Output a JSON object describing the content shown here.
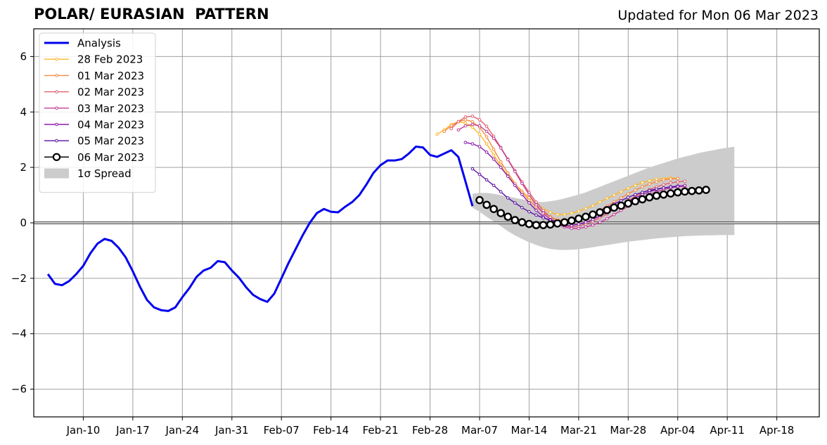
{
  "chart_data": {
    "type": "line",
    "title": "POLAR/ EURASIAN  PATTERN",
    "subtitle": "Updated for Mon 06 Mar 2023",
    "xlabel": "",
    "ylabel": "",
    "x_range": [
      "2023-01-03",
      "2023-04-24"
    ],
    "ylim": [
      -7,
      7
    ],
    "y_ticks": [
      -6,
      -4,
      -2,
      0,
      2,
      4,
      6
    ],
    "x_ticks": [
      {
        "date": "2023-01-10",
        "label": "Jan-10"
      },
      {
        "date": "2023-01-17",
        "label": "Jan-17"
      },
      {
        "date": "2023-01-24",
        "label": "Jan-24"
      },
      {
        "date": "2023-01-31",
        "label": "Jan-31"
      },
      {
        "date": "2023-02-07",
        "label": "Feb-07"
      },
      {
        "date": "2023-02-14",
        "label": "Feb-14"
      },
      {
        "date": "2023-02-21",
        "label": "Feb-21"
      },
      {
        "date": "2023-02-28",
        "label": "Feb-28"
      },
      {
        "date": "2023-03-07",
        "label": "Mar-07"
      },
      {
        "date": "2023-03-14",
        "label": "Mar-14"
      },
      {
        "date": "2023-03-21",
        "label": "Mar-21"
      },
      {
        "date": "2023-03-28",
        "label": "Mar-28"
      },
      {
        "date": "2023-04-04",
        "label": "Apr-04"
      },
      {
        "date": "2023-04-11",
        "label": "Apr-11"
      },
      {
        "date": "2023-04-18",
        "label": "Apr-18"
      }
    ],
    "grid": true,
    "legend_position": "top-left",
    "analysis": {
      "name": "Analysis",
      "color": "#0000ee",
      "start_date": "2023-01-05",
      "values": [
        -1.85,
        -2.2,
        -2.25,
        -2.1,
        -1.85,
        -1.55,
        -1.1,
        -0.75,
        -0.58,
        -0.65,
        -0.9,
        -1.25,
        -1.75,
        -2.3,
        -2.78,
        -3.05,
        -3.15,
        -3.18,
        -3.05,
        -2.68,
        -2.35,
        -1.95,
        -1.72,
        -1.62,
        -1.38,
        -1.42,
        -1.72,
        -1.98,
        -2.32,
        -2.6,
        -2.75,
        -2.85,
        -2.55,
        -2.0,
        -1.45,
        -0.95,
        -0.45,
        0.0,
        0.35,
        0.5,
        0.4,
        0.38,
        0.58,
        0.75,
        1.0,
        1.38,
        1.8,
        2.08,
        2.25,
        2.25,
        2.3,
        2.5,
        2.75,
        2.72,
        2.45,
        2.38,
        2.5,
        2.62,
        2.38,
        1.5,
        0.6
      ]
    },
    "forecasts": [
      {
        "name": "28 Feb 2023",
        "color": "#fbb829",
        "start_date": "2023-03-01",
        "values": [
          3.2,
          3.35,
          3.55,
          3.65,
          3.6,
          3.45,
          3.2,
          2.85,
          2.45,
          2.05,
          1.7,
          1.4,
          1.15,
          0.9,
          0.7,
          0.5,
          0.38,
          0.3,
          0.3,
          0.35,
          0.42,
          0.52,
          0.62,
          0.75,
          0.88,
          1.0,
          1.12,
          1.25,
          1.35,
          1.45,
          1.52,
          1.57,
          1.6,
          1.62,
          1.6
        ]
      },
      {
        "name": "01 Mar 2023",
        "color": "#f58b42",
        "start_date": "2023-03-02",
        "values": [
          3.3,
          3.5,
          3.65,
          3.72,
          3.65,
          3.45,
          3.1,
          2.65,
          2.2,
          1.8,
          1.42,
          1.1,
          0.82,
          0.58,
          0.38,
          0.22,
          0.12,
          0.08,
          0.08,
          0.12,
          0.2,
          0.32,
          0.45,
          0.6,
          0.75,
          0.9,
          1.05,
          1.18,
          1.3,
          1.4,
          1.48,
          1.55,
          1.58,
          1.6
        ]
      },
      {
        "name": "02 Mar 2023",
        "color": "#e0606e",
        "start_date": "2023-03-03",
        "values": [
          3.4,
          3.65,
          3.82,
          3.85,
          3.72,
          3.48,
          3.12,
          2.72,
          2.3,
          1.88,
          1.48,
          1.1,
          0.75,
          0.45,
          0.2,
          0.02,
          -0.1,
          -0.15,
          -0.12,
          -0.05,
          0.05,
          0.18,
          0.32,
          0.48,
          0.64,
          0.8,
          0.95,
          1.08,
          1.2,
          1.3,
          1.38,
          1.44,
          1.48,
          1.5
        ]
      },
      {
        "name": "03 Mar 2023",
        "color": "#c03b97",
        "start_date": "2023-03-04",
        "values": [
          3.35,
          3.5,
          3.55,
          3.5,
          3.3,
          3.05,
          2.7,
          2.28,
          1.85,
          1.42,
          1.02,
          0.65,
          0.35,
          0.12,
          -0.05,
          -0.15,
          -0.2,
          -0.2,
          -0.15,
          -0.08,
          0.02,
          0.15,
          0.3,
          0.45,
          0.6,
          0.75,
          0.9,
          1.02,
          1.12,
          1.2,
          1.26,
          1.3,
          1.32
        ]
      },
      {
        "name": "04 Mar 2023",
        "color": "#8e1bab",
        "start_date": "2023-03-05",
        "values": [
          2.9,
          2.85,
          2.75,
          2.55,
          2.3,
          2.0,
          1.68,
          1.35,
          1.02,
          0.72,
          0.45,
          0.22,
          0.05,
          -0.05,
          -0.1,
          -0.1,
          -0.05,
          0.02,
          0.12,
          0.25,
          0.38,
          0.52,
          0.65,
          0.78,
          0.9,
          1.02,
          1.12,
          1.2,
          1.26,
          1.3,
          1.33,
          1.35
        ]
      },
      {
        "name": "05 Mar 2023",
        "color": "#5a0fa0",
        "start_date": "2023-03-06",
        "values": [
          1.95,
          1.75,
          1.55,
          1.35,
          1.12,
          0.9,
          0.72,
          0.55,
          0.4,
          0.28,
          0.18,
          0.1,
          0.05,
          0.04,
          0.06,
          0.12,
          0.2,
          0.3,
          0.42,
          0.55,
          0.68,
          0.8,
          0.92,
          1.02,
          1.1,
          1.17,
          1.22,
          1.26,
          1.29,
          1.31
        ]
      },
      {
        "name": "06 Mar 2023",
        "color": "#000000",
        "start_date": "2023-03-07",
        "values": [
          0.82,
          0.65,
          0.5,
          0.35,
          0.22,
          0.1,
          0.02,
          -0.04,
          -0.08,
          -0.08,
          -0.06,
          -0.02,
          0.02,
          0.08,
          0.15,
          0.22,
          0.3,
          0.38,
          0.46,
          0.55,
          0.62,
          0.7,
          0.78,
          0.85,
          0.92,
          0.98,
          1.02,
          1.06,
          1.1,
          1.13,
          1.15,
          1.17,
          1.19
        ]
      }
    ],
    "spread": {
      "name": "1σ Spread",
      "color": "#cccccc",
      "start_date": "2023-03-06",
      "upper": [
        1.05,
        1.08,
        1.08,
        1.05,
        1.0,
        0.95,
        0.9,
        0.85,
        0.8,
        0.75,
        0.75,
        0.78,
        0.82,
        0.88,
        0.95,
        1.02,
        1.1,
        1.2,
        1.3,
        1.4,
        1.5,
        1.6,
        1.7,
        1.8,
        1.9,
        2.0,
        2.08,
        2.16,
        2.24,
        2.32,
        2.39,
        2.45,
        2.52,
        2.57,
        2.62,
        2.67,
        2.71,
        2.75
      ],
      "lower": [
        0.55,
        0.4,
        0.22,
        0.05,
        -0.12,
        -0.3,
        -0.45,
        -0.58,
        -0.7,
        -0.8,
        -0.88,
        -0.94,
        -0.97,
        -0.98,
        -0.97,
        -0.95,
        -0.92,
        -0.88,
        -0.84,
        -0.8,
        -0.76,
        -0.72,
        -0.68,
        -0.65,
        -0.62,
        -0.59,
        -0.56,
        -0.54,
        -0.52,
        -0.5,
        -0.48,
        -0.47,
        -0.46,
        -0.45,
        -0.45,
        -0.44,
        -0.44,
        -0.44
      ]
    }
  }
}
